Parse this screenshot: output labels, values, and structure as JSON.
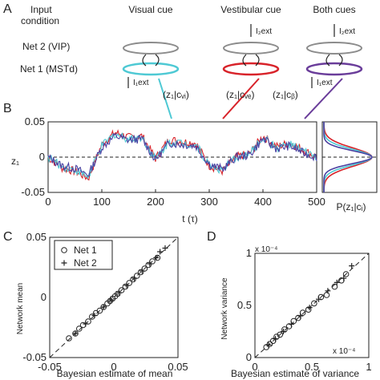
{
  "panels": {
    "A": "A",
    "B": "B",
    "C": "C",
    "D": "D"
  },
  "panel_a": {
    "input_condition": [
      "Input",
      "condition"
    ],
    "net2_label": "Net 2 (VIP)",
    "net1_label": "Net 1 (MSTd)",
    "columns": [
      {
        "title": "Visual cue",
        "posterior": "(z₁|cᵥᵢ)",
        "color": "#4ec9d4",
        "top_input": "",
        "bottom_input": "I₁ext"
      },
      {
        "title": "Vestibular cue",
        "posterior": "(z₁|cᵥₑ)",
        "color": "#d8232a",
        "top_input": "I₂ext",
        "bottom_input": ""
      },
      {
        "title": "Both cues",
        "posterior": "(z₁|cᵦ)",
        "color": "#6a3d9a",
        "top_input": "I₂ext",
        "bottom_input": "I₁ext"
      }
    ],
    "ring_gray": "#8c8c8c"
  },
  "panel_b": {
    "ylabel": "z₁",
    "xlabel": "t (τ)",
    "yticks": [
      "0.05",
      "0",
      "-0.05"
    ],
    "xticks": [
      "0",
      "100",
      "200",
      "300",
      "400",
      "500"
    ],
    "hist_label": "P(z₁|cᵢ)"
  },
  "panel_c": {
    "xlabel": "Bayesian estimate of mean",
    "ylabel": "Network mean",
    "ticks": [
      "-0.05",
      "0",
      "0.05"
    ],
    "legend": [
      {
        "marker": "o",
        "label": "Net 1"
      },
      {
        "marker": "+",
        "label": "Net 2"
      }
    ]
  },
  "panel_d": {
    "xlabel": "Bayesian estimate of variance",
    "ylabel": "Network variance",
    "yticks": [
      "0",
      "0.5",
      "1"
    ],
    "xticks": [
      "0",
      "0.5",
      "1"
    ],
    "y_exp": "x 10⁻⁴",
    "x_exp": "x 10⁻⁴"
  },
  "chart_data": [
    {
      "type": "line",
      "title": "",
      "xlabel": "t (τ)",
      "ylabel": "z₁",
      "xlim": [
        0,
        500
      ],
      "ylim": [
        -0.05,
        0.05
      ],
      "series": [
        {
          "color": "#d8232a",
          "x": [
            0,
            25,
            50,
            75,
            100,
            125,
            150,
            175,
            200,
            225,
            250,
            275,
            300,
            325,
            350,
            375,
            400,
            425,
            450,
            475,
            500
          ],
          "y": [
            0.0,
            -0.015,
            -0.02,
            -0.03,
            0.018,
            0.035,
            0.028,
            0.03,
            -0.002,
            0.025,
            0.022,
            0.02,
            -0.012,
            -0.02,
            0.0,
            0.005,
            0.03,
            0.015,
            0.02,
            0.01,
            0.0
          ]
        },
        {
          "color": "#4ec9d4",
          "x": [
            0,
            25,
            50,
            75,
            100,
            125,
            150,
            175,
            200,
            225,
            250,
            275,
            300,
            325,
            350,
            375,
            400,
            425,
            450,
            475,
            500
          ],
          "y": [
            0.0,
            -0.013,
            -0.018,
            -0.028,
            0.016,
            0.033,
            0.026,
            0.028,
            -0.003,
            0.022,
            0.02,
            0.018,
            -0.011,
            -0.019,
            0.0,
            0.004,
            0.028,
            0.013,
            0.018,
            0.008,
            0.0
          ]
        },
        {
          "color": "#4a3fa0",
          "x": [
            0,
            25,
            50,
            75,
            100,
            125,
            150,
            175,
            200,
            225,
            250,
            275,
            300,
            325,
            350,
            375,
            400,
            425,
            450,
            475,
            500
          ],
          "y": [
            0.0,
            -0.012,
            -0.016,
            -0.025,
            0.014,
            0.03,
            0.024,
            0.026,
            -0.004,
            0.02,
            0.018,
            0.016,
            -0.01,
            -0.017,
            0.0,
            0.003,
            0.026,
            0.012,
            0.016,
            0.006,
            0.0
          ]
        }
      ]
    },
    {
      "type": "scatter",
      "xlabel": "Bayesian estimate of mean",
      "ylabel": "Network mean",
      "xlim": [
        -0.05,
        0.05
      ],
      "ylim": [
        -0.05,
        0.05
      ],
      "series": [
        {
          "name": "Net 1",
          "marker": "o",
          "x": [
            -0.035,
            -0.03,
            -0.027,
            -0.024,
            -0.02,
            -0.017,
            -0.014,
            -0.011,
            -0.008,
            -0.005,
            -0.003,
            -0.001,
            0.001,
            0.003,
            0.006,
            0.009,
            0.012,
            0.015,
            0.018,
            0.021,
            0.024,
            0.027,
            0.03,
            0.034
          ],
          "y": [
            -0.034,
            -0.03,
            -0.026,
            -0.023,
            -0.02,
            -0.016,
            -0.013,
            -0.011,
            -0.008,
            -0.005,
            -0.003,
            -0.001,
            0.001,
            0.003,
            0.006,
            0.009,
            0.012,
            0.015,
            0.018,
            0.021,
            0.024,
            0.027,
            0.03,
            0.033
          ]
        },
        {
          "name": "Net 2",
          "marker": "+",
          "x": [
            -0.03,
            -0.022,
            -0.015,
            -0.008,
            -0.002,
            0.004,
            0.01,
            0.016,
            0.022,
            0.028,
            0.033,
            0.036,
            0.04
          ],
          "y": [
            -0.03,
            -0.022,
            -0.015,
            -0.008,
            -0.002,
            0.004,
            0.01,
            0.016,
            0.022,
            0.028,
            0.033,
            0.038,
            0.041
          ]
        }
      ]
    },
    {
      "type": "scatter",
      "xlabel": "Bayesian estimate of variance",
      "ylabel": "Network variance",
      "xlim": [
        0,
        1
      ],
      "ylim": [
        0,
        1
      ],
      "series": [
        {
          "name": "Net 1",
          "marker": "o",
          "x": [
            0.1,
            0.13,
            0.16,
            0.19,
            0.22,
            0.26,
            0.3,
            0.34,
            0.38,
            0.42,
            0.47,
            0.52,
            0.58,
            0.63,
            0.7,
            0.76,
            0.8
          ],
          "y": [
            0.1,
            0.13,
            0.16,
            0.2,
            0.22,
            0.27,
            0.3,
            0.35,
            0.38,
            0.43,
            0.46,
            0.52,
            0.58,
            0.6,
            0.68,
            0.74,
            0.8
          ]
        },
        {
          "name": "Net 2",
          "marker": "+",
          "x": [
            0.12,
            0.18,
            0.25,
            0.32,
            0.4,
            0.48,
            0.56,
            0.64,
            0.72,
            0.78,
            0.85
          ],
          "y": [
            0.12,
            0.18,
            0.25,
            0.32,
            0.4,
            0.48,
            0.56,
            0.64,
            0.72,
            0.76,
            0.88
          ]
        }
      ]
    }
  ]
}
